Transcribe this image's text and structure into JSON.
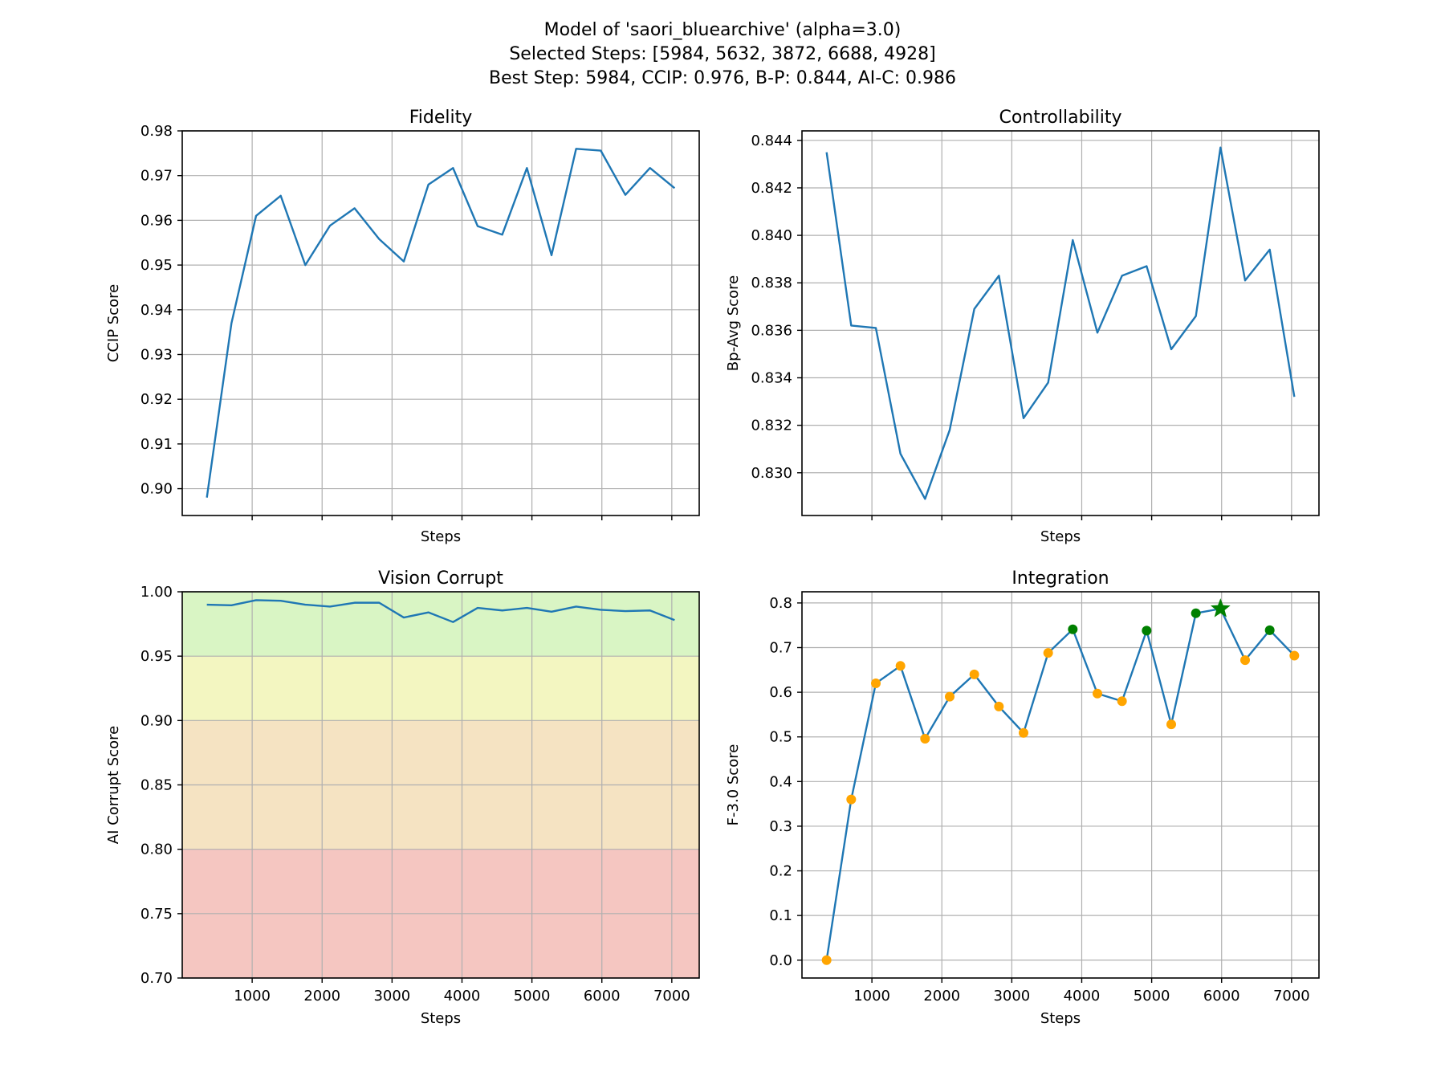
{
  "figure": {
    "suptitle_lines": [
      "Model of 'saori_bluearchive' (alpha=3.0)",
      "Selected Steps: [5984, 5632, 3872, 6688, 4928]",
      "Best Step: 5984, CCIP: 0.976, B-P: 0.844, AI-C: 0.986"
    ]
  },
  "colors": {
    "line": "#1f77b4",
    "marker_default": "#ffa500",
    "marker_selected": "#008000",
    "marker_best": "#008000",
    "band_green": "#d9f5c4",
    "band_yellow": "#f3f6c1",
    "band_orange": "#f5e3c2",
    "band_red": "#f5c6c1"
  },
  "chart_data": [
    {
      "id": "fidelity",
      "type": "line",
      "title": "Fidelity",
      "xlabel": "Steps",
      "ylabel": "CCIP Score",
      "xlim": [
        0,
        7392
      ],
      "ylim": [
        0.894,
        0.98
      ],
      "x_ticks": [
        1000,
        2000,
        3000,
        4000,
        5000,
        6000,
        7000
      ],
      "show_x_tick_labels": false,
      "y_ticks": [
        0.9,
        0.91,
        0.92,
        0.93,
        0.94,
        0.95,
        0.96,
        0.97,
        0.98
      ],
      "y_tick_labels": [
        "0.90",
        "0.91",
        "0.92",
        "0.93",
        "0.94",
        "0.95",
        "0.96",
        "0.97",
        "0.98"
      ],
      "grid": true,
      "x": [
        352,
        704,
        1056,
        1408,
        1760,
        2112,
        2464,
        2816,
        3168,
        3520,
        3872,
        4224,
        4576,
        4928,
        5280,
        5632,
        5984,
        6336,
        6688,
        7040
      ],
      "y": [
        0.898,
        0.937,
        0.961,
        0.9655,
        0.95,
        0.9588,
        0.9627,
        0.9558,
        0.9508,
        0.968,
        0.9717,
        0.9587,
        0.9568,
        0.9717,
        0.9522,
        0.976,
        0.9756,
        0.9657,
        0.9717,
        0.9672
      ]
    },
    {
      "id": "controllability",
      "type": "line",
      "title": "Controllability",
      "xlabel": "Steps",
      "ylabel": "Bp-Avg Score",
      "xlim": [
        0,
        7392
      ],
      "ylim": [
        0.8282,
        0.8444
      ],
      "x_ticks": [
        1000,
        2000,
        3000,
        4000,
        5000,
        6000,
        7000
      ],
      "show_x_tick_labels": false,
      "y_ticks": [
        0.83,
        0.832,
        0.834,
        0.836,
        0.838,
        0.84,
        0.842,
        0.844
      ],
      "y_tick_labels": [
        "0.830",
        "0.832",
        "0.834",
        "0.836",
        "0.838",
        "0.840",
        "0.842",
        "0.844"
      ],
      "grid": true,
      "x": [
        352,
        704,
        1056,
        1408,
        1760,
        2112,
        2464,
        2816,
        3168,
        3520,
        3872,
        4224,
        4576,
        4928,
        5280,
        5632,
        5984,
        6336,
        6688,
        7040
      ],
      "y": [
        0.8435,
        0.8362,
        0.8361,
        0.8308,
        0.8289,
        0.8318,
        0.8369,
        0.8383,
        0.8323,
        0.8338,
        0.8398,
        0.8359,
        0.8383,
        0.8387,
        0.8352,
        0.8366,
        0.8437,
        0.8381,
        0.8394,
        0.8332
      ]
    },
    {
      "id": "vision-corrupt",
      "type": "line",
      "title": "Vision Corrupt",
      "xlabel": "Steps",
      "ylabel": "AI Corrupt Score",
      "xlim": [
        0,
        7392
      ],
      "ylim": [
        0.7,
        1.0
      ],
      "x_ticks": [
        1000,
        2000,
        3000,
        4000,
        5000,
        6000,
        7000
      ],
      "x_tick_labels": [
        "1000",
        "2000",
        "3000",
        "4000",
        "5000",
        "6000",
        "7000"
      ],
      "show_x_tick_labels": true,
      "y_ticks": [
        0.7,
        0.75,
        0.8,
        0.85,
        0.9,
        0.95,
        1.0
      ],
      "y_tick_labels": [
        "0.70",
        "0.75",
        "0.80",
        "0.85",
        "0.90",
        "0.95",
        "1.00"
      ],
      "grid": true,
      "bands": [
        {
          "from": 0.95,
          "to": 1.0,
          "color": "band_green"
        },
        {
          "from": 0.9,
          "to": 0.95,
          "color": "band_yellow"
        },
        {
          "from": 0.8,
          "to": 0.9,
          "color": "band_orange"
        },
        {
          "from": 0.7,
          "to": 0.8,
          "color": "band_red"
        }
      ],
      "x": [
        352,
        704,
        1056,
        1408,
        1760,
        2112,
        2464,
        2816,
        3168,
        3520,
        3872,
        4224,
        4576,
        4928,
        5280,
        5632,
        5984,
        6336,
        6688,
        7040
      ],
      "y": [
        0.99,
        0.9895,
        0.9935,
        0.993,
        0.99,
        0.9885,
        0.9915,
        0.9915,
        0.98,
        0.984,
        0.9765,
        0.9875,
        0.9855,
        0.9875,
        0.9845,
        0.9885,
        0.986,
        0.985,
        0.9855,
        0.978
      ]
    },
    {
      "id": "integration",
      "type": "line",
      "title": "Integration",
      "xlabel": "Steps",
      "ylabel": "F-3.0 Score",
      "xlim": [
        0,
        7392
      ],
      "ylim": [
        -0.04,
        0.825
      ],
      "x_ticks": [
        1000,
        2000,
        3000,
        4000,
        5000,
        6000,
        7000
      ],
      "x_tick_labels": [
        "1000",
        "2000",
        "3000",
        "4000",
        "5000",
        "6000",
        "7000"
      ],
      "show_x_tick_labels": true,
      "y_ticks": [
        0.0,
        0.1,
        0.2,
        0.3,
        0.4,
        0.5,
        0.6,
        0.7,
        0.8
      ],
      "y_tick_labels": [
        "0.0",
        "0.1",
        "0.2",
        "0.3",
        "0.4",
        "0.5",
        "0.6",
        "0.7",
        "0.8"
      ],
      "grid": true,
      "x": [
        352,
        704,
        1056,
        1408,
        1760,
        2112,
        2464,
        2816,
        3168,
        3520,
        3872,
        4224,
        4576,
        4928,
        5280,
        5632,
        5984,
        6336,
        6688,
        7040
      ],
      "y": [
        0.0,
        0.36,
        0.62,
        0.659,
        0.496,
        0.59,
        0.64,
        0.568,
        0.509,
        0.688,
        0.741,
        0.597,
        0.58,
        0.738,
        0.528,
        0.777,
        0.787,
        0.672,
        0.739,
        0.682
      ],
      "selected_steps": [
        5984,
        5632,
        3872,
        6688,
        4928
      ],
      "best_step": 5984
    }
  ]
}
